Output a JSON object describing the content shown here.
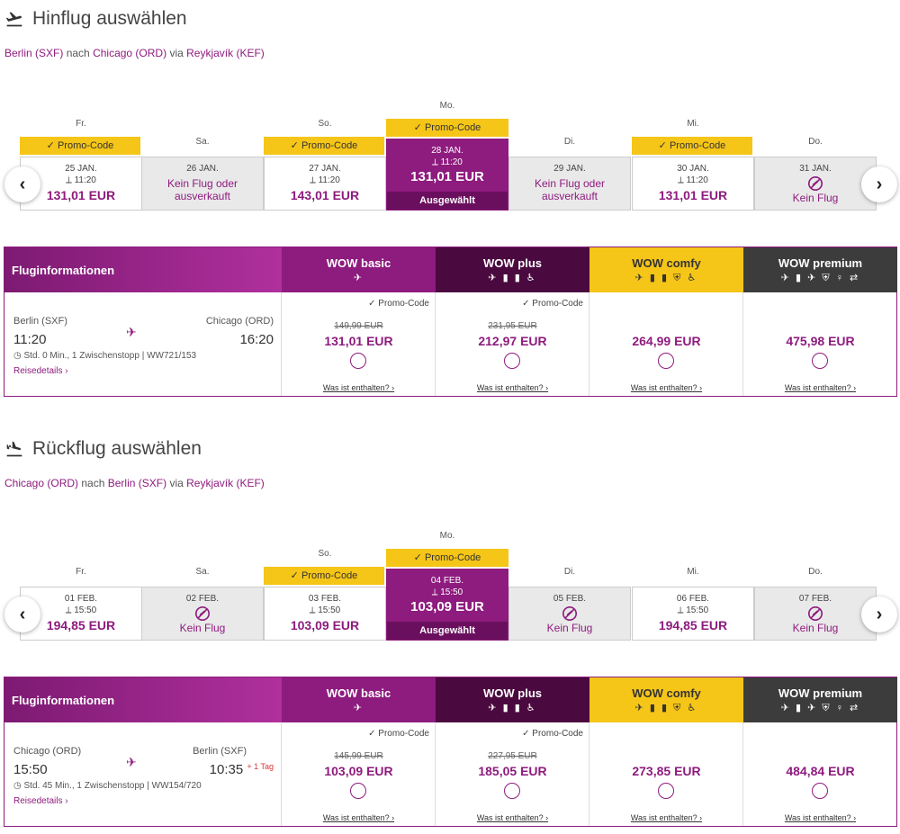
{
  "outbound": {
    "title": "Hinflug auswählen",
    "route": {
      "from": "Berlin (SXF)",
      "w1": "nach",
      "to": "Chicago (ORD)",
      "w2": "via",
      "via": "Reykjavík (KEF)"
    },
    "days": [
      {
        "dow": "Fr.",
        "promo": "✓ Promo-Code",
        "date": "25 JAN.",
        "time": "⟂ 11:20",
        "price": "131,01 EUR"
      },
      {
        "dow": "Sa.",
        "date": "26 JAN.",
        "nf": "Kein Flug oder ausverkauft"
      },
      {
        "dow": "So.",
        "promo": "✓ Promo-Code",
        "date": "27 JAN.",
        "time": "⟂ 11:20",
        "price": "143,01 EUR"
      },
      {
        "dow": "Mo.",
        "promo": "✓ Promo-Code",
        "date": "28 JAN.",
        "time": "⟂ 11:20",
        "price": "131,01 EUR",
        "selected": "Ausgewählt"
      },
      {
        "dow": "Di.",
        "date": "29 JAN.",
        "nf": "Kein Flug oder ausverkauft"
      },
      {
        "dow": "Mi.",
        "promo": "✓ Promo-Code",
        "date": "30 JAN.",
        "time": "⟂ 11:20",
        "price": "131,01 EUR"
      },
      {
        "dow": "Do.",
        "date": "31 JAN.",
        "nf": "Kein Flug"
      }
    ],
    "table": {
      "info_header": "Fluginformationen",
      "from_city": "Berlin (SXF)",
      "from_time": "11:20",
      "to_city": "Chicago (ORD)",
      "to_time": "16:20",
      "duration": "Std. 0 Min., 1 Zwischenstopp | WW721/153",
      "details": "Reisedetails ›",
      "fares": [
        {
          "name": "WOW basic",
          "promo": "✓ Promo-Code",
          "old": "149,99 EUR",
          "price": "131,01 EUR",
          "incl": "Was ist enthalten? ›"
        },
        {
          "name": "WOW plus",
          "promo": "✓ Promo-Code",
          "old": "231,95 EUR",
          "price": "212,97 EUR",
          "incl": "Was ist enthalten? ›"
        },
        {
          "name": "WOW comfy",
          "price": "264,99 EUR",
          "incl": "Was ist enthalten? ›"
        },
        {
          "name": "WOW premium",
          "price": "475,98 EUR",
          "incl": "Was ist enthalten? ›"
        }
      ]
    }
  },
  "return": {
    "title": "Rückflug auswählen",
    "route": {
      "from": "Chicago (ORD)",
      "w1": "nach",
      "to": "Berlin (SXF)",
      "w2": "via",
      "via": "Reykjavík (KEF)"
    },
    "days": [
      {
        "dow": "Fr.",
        "date": "01 FEB.",
        "time": "⟂ 15:50",
        "price": "194,85 EUR"
      },
      {
        "dow": "Sa.",
        "date": "02 FEB.",
        "nf": "Kein Flug"
      },
      {
        "dow": "So.",
        "promo": "✓ Promo-Code",
        "date": "03 FEB.",
        "time": "⟂ 15:50",
        "price": "103,09 EUR"
      },
      {
        "dow": "Mo.",
        "promo": "✓ Promo-Code",
        "date": "04 FEB.",
        "time": "⟂ 15:50",
        "price": "103,09 EUR",
        "selected": "Ausgewählt"
      },
      {
        "dow": "Di.",
        "date": "05 FEB.",
        "nf": "Kein Flug"
      },
      {
        "dow": "Mi.",
        "date": "06 FEB.",
        "time": "⟂ 15:50",
        "price": "194,85 EUR"
      },
      {
        "dow": "Do.",
        "date": "07 FEB.",
        "nf": "Kein Flug"
      }
    ],
    "table": {
      "info_header": "Fluginformationen",
      "from_city": "Chicago (ORD)",
      "from_time": "15:50",
      "to_city": "Berlin (SXF)",
      "to_time": "10:35",
      "plus_day": "+ 1 Tag",
      "duration": "Std. 45 Min., 1 Zwischenstopp | WW154/720",
      "details": "Reisedetails ›",
      "fares": [
        {
          "name": "WOW basic",
          "promo": "✓ Promo-Code",
          "old": "145,99 EUR",
          "price": "103,09 EUR",
          "incl": "Was ist enthalten? ›"
        },
        {
          "name": "WOW plus",
          "promo": "✓ Promo-Code",
          "old": "227,95 EUR",
          "price": "185,05 EUR",
          "incl": "Was ist enthalten? ›"
        },
        {
          "name": "WOW comfy",
          "price": "273,85 EUR",
          "incl": "Was ist enthalten? ›"
        },
        {
          "name": "WOW premium",
          "price": "484,84 EUR",
          "incl": "Was ist enthalten? ›"
        }
      ]
    }
  },
  "icons": {
    "basic": "✈",
    "plus": "✈ ▮ ▮ ♿",
    "comfy": "✈ ▮ ▮ ⛨ ♿",
    "premium": "✈ ▮ ✈ ⛨ ♀ ⇄"
  },
  "nav": {
    "prev": "‹",
    "next": "›"
  }
}
